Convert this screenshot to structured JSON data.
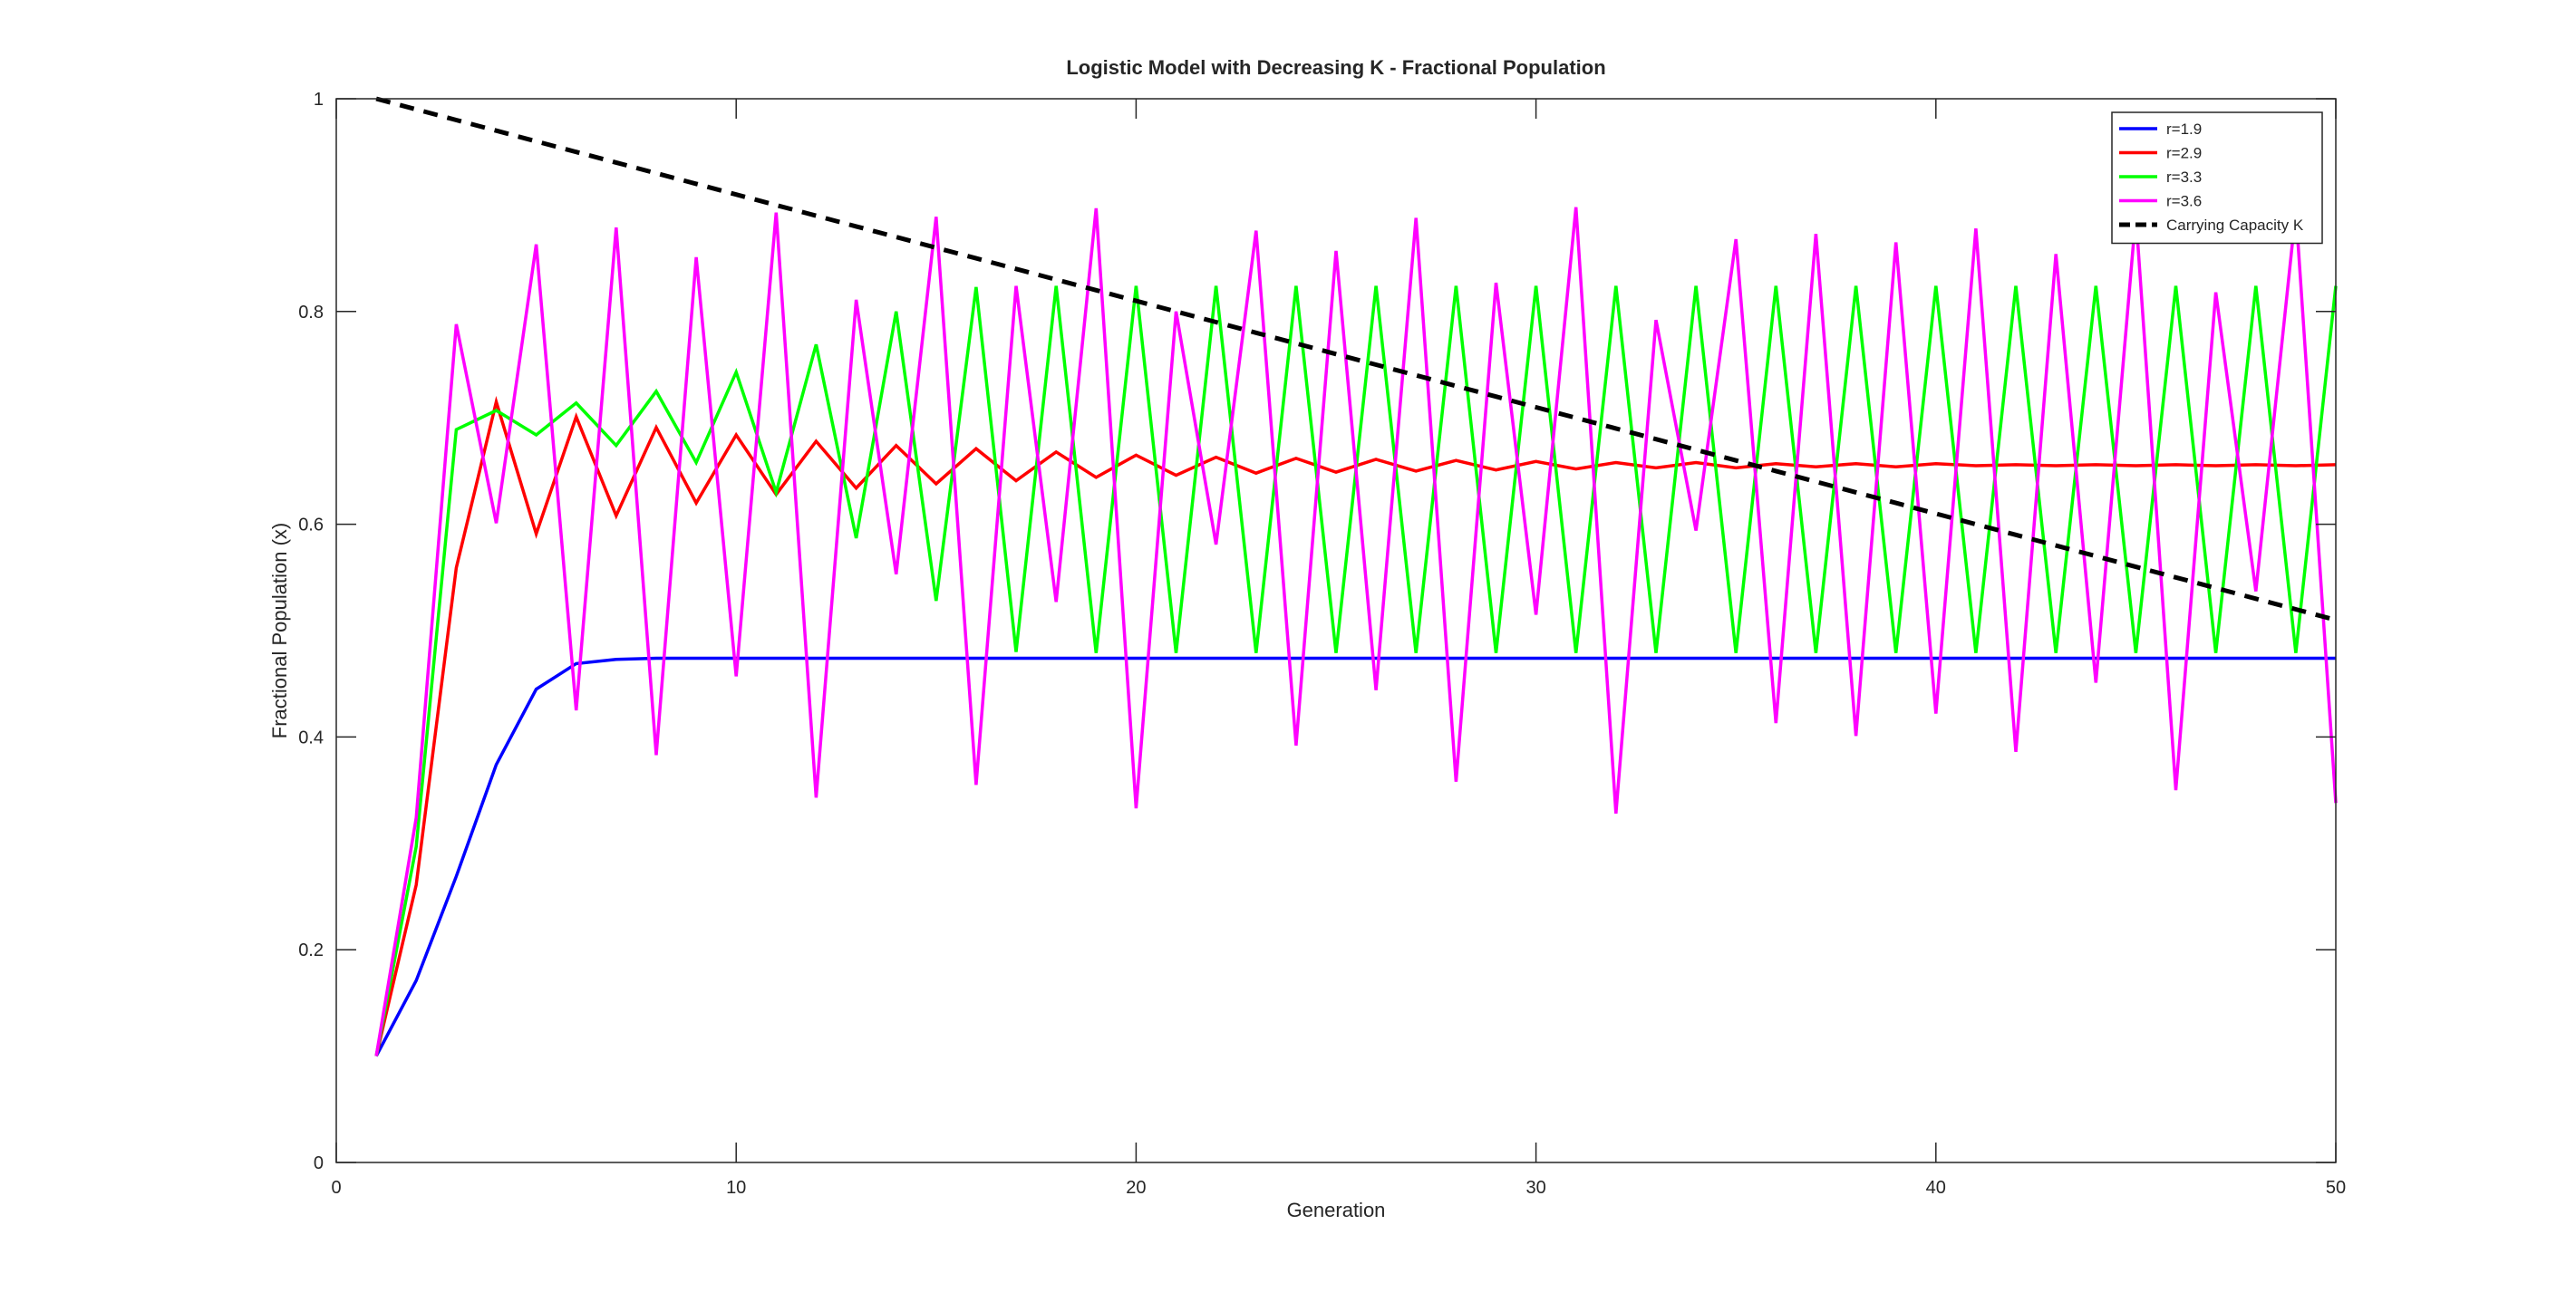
{
  "chart_data": {
    "type": "line",
    "title": "Logistic Model with Decreasing K - Fractional Population",
    "xlabel": "Generation",
    "ylabel": "Fractional Population (x)",
    "xlim": [
      0,
      50
    ],
    "ylim": [
      0,
      1
    ],
    "xticks": [
      0,
      10,
      20,
      30,
      40,
      50
    ],
    "yticks": [
      0,
      0.2,
      0.4,
      0.6,
      0.8,
      1
    ],
    "xtick_labels": [
      "0",
      "10",
      "20",
      "30",
      "40",
      "50"
    ],
    "ytick_labels": [
      "0",
      "0.2",
      "0.4",
      "0.6",
      "0.8",
      "1"
    ],
    "grid": false,
    "legend_position": "top-right",
    "x": [
      1,
      2,
      3,
      4,
      5,
      6,
      7,
      8,
      9,
      10,
      11,
      12,
      13,
      14,
      15,
      16,
      17,
      18,
      19,
      20,
      21,
      22,
      23,
      24,
      25,
      26,
      27,
      28,
      29,
      30,
      31,
      32,
      33,
      34,
      35,
      36,
      37,
      38,
      39,
      40,
      41,
      42,
      43,
      44,
      45,
      46,
      47,
      48,
      49,
      50
    ],
    "series": [
      {
        "name": "r=1.9",
        "color": "#0000ff",
        "dashed": false,
        "values": [
          0.1,
          0.171,
          0.269,
          0.374,
          0.445,
          0.469,
          0.473,
          0.474,
          0.474,
          0.474,
          0.474,
          0.474,
          0.474,
          0.474,
          0.474,
          0.474,
          0.474,
          0.474,
          0.474,
          0.474,
          0.474,
          0.474,
          0.474,
          0.474,
          0.474,
          0.474,
          0.474,
          0.474,
          0.474,
          0.474,
          0.474,
          0.474,
          0.474,
          0.474,
          0.474,
          0.474,
          0.474,
          0.474,
          0.474,
          0.474,
          0.474,
          0.474,
          0.474,
          0.474,
          0.474,
          0.474,
          0.474,
          0.474,
          0.474,
          0.474
        ]
      },
      {
        "name": "r=2.9",
        "color": "#ff0000",
        "dashed": false,
        "values": [
          0.1,
          0.261,
          0.559,
          0.715,
          0.591,
          0.701,
          0.608,
          0.691,
          0.62,
          0.684,
          0.628,
          0.678,
          0.634,
          0.674,
          0.638,
          0.671,
          0.641,
          0.668,
          0.644,
          0.665,
          0.646,
          0.663,
          0.648,
          0.662,
          0.649,
          0.661,
          0.65,
          0.66,
          0.651,
          0.659,
          0.652,
          0.658,
          0.653,
          0.658,
          0.653,
          0.657,
          0.654,
          0.657,
          0.654,
          0.657,
          0.655,
          0.656,
          0.655,
          0.656,
          0.655,
          0.656,
          0.655,
          0.656,
          0.655,
          0.656
        ]
      },
      {
        "name": "r=3.3",
        "color": "#00ff00",
        "dashed": false,
        "values": [
          0.1,
          0.297,
          0.689,
          0.707,
          0.684,
          0.714,
          0.674,
          0.725,
          0.658,
          0.743,
          0.63,
          0.769,
          0.587,
          0.8,
          0.528,
          0.823,
          0.48,
          0.824,
          0.479,
          0.824,
          0.479,
          0.824,
          0.479,
          0.824,
          0.479,
          0.824,
          0.479,
          0.824,
          0.479,
          0.824,
          0.479,
          0.824,
          0.479,
          0.824,
          0.479,
          0.824,
          0.479,
          0.824,
          0.479,
          0.824,
          0.479,
          0.824,
          0.479,
          0.824,
          0.479,
          0.824,
          0.479,
          0.824,
          0.479,
          0.824
        ]
      },
      {
        "name": "r=3.6",
        "color": "#ff00ff",
        "dashed": false,
        "values": [
          0.1,
          0.324,
          0.788,
          0.601,
          0.863,
          0.425,
          0.879,
          0.383,
          0.851,
          0.457,
          0.893,
          0.343,
          0.811,
          0.553,
          0.889,
          0.355,
          0.824,
          0.527,
          0.897,
          0.333,
          0.8,
          0.581,
          0.876,
          0.392,
          0.857,
          0.444,
          0.888,
          0.358,
          0.827,
          0.515,
          0.898,
          0.328,
          0.792,
          0.594,
          0.868,
          0.413,
          0.873,
          0.401,
          0.865,
          0.422,
          0.878,
          0.386,
          0.854,
          0.451,
          0.891,
          0.35,
          0.818,
          0.537,
          0.895,
          0.338
        ]
      },
      {
        "name": "Carrying Capacity K",
        "color": "#000000",
        "dashed": true,
        "values": [
          1,
          0.99,
          0.98,
          0.97,
          0.96,
          0.95,
          0.94,
          0.93,
          0.92,
          0.91,
          0.9,
          0.89,
          0.88,
          0.87,
          0.86,
          0.85,
          0.84,
          0.83,
          0.82,
          0.81,
          0.8,
          0.79,
          0.78,
          0.77,
          0.76,
          0.75,
          0.74,
          0.73,
          0.72,
          0.71,
          0.7,
          0.69,
          0.68,
          0.67,
          0.66,
          0.65,
          0.64,
          0.63,
          0.62,
          0.61,
          0.6,
          0.59,
          0.58,
          0.57,
          0.56,
          0.55,
          0.54,
          0.53,
          0.52,
          0.51
        ]
      }
    ]
  }
}
